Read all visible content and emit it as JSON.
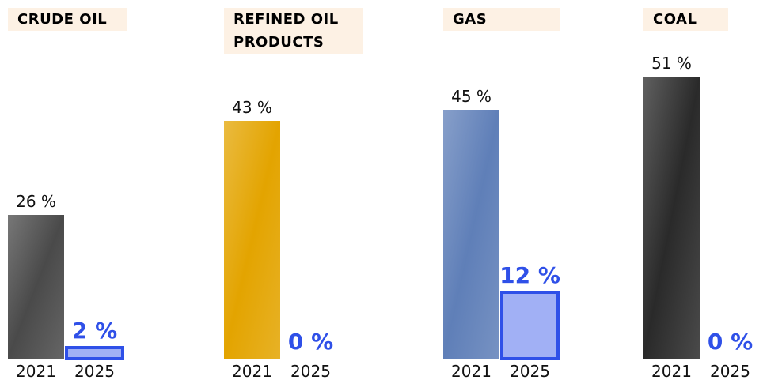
{
  "chart_data": [
    {
      "type": "bar",
      "title": "CRUDE OIL",
      "categories": [
        "2021",
        "2025"
      ],
      "values": [
        26,
        2
      ],
      "value_labels": [
        "26 %",
        "2 %"
      ],
      "colors": [
        "#4a4a4a",
        "#2f50e8"
      ]
    },
    {
      "type": "bar",
      "title": "REFINED OIL PRODUCTS",
      "categories": [
        "2021",
        "2025"
      ],
      "values": [
        43,
        0
      ],
      "value_labels": [
        "43 %",
        "0 %"
      ],
      "colors": [
        "#e3a400",
        "#2f50e8"
      ]
    },
    {
      "type": "bar",
      "title": "GAS",
      "categories": [
        "2021",
        "2025"
      ],
      "values": [
        45,
        12
      ],
      "value_labels": [
        "45 %",
        "12 %"
      ],
      "colors": [
        "#5f7fb8",
        "#2f50e8"
      ]
    },
    {
      "type": "bar",
      "title": "COAL",
      "categories": [
        "2021",
        "2025"
      ],
      "values": [
        51,
        0
      ],
      "value_labels": [
        "51 %",
        "0 %"
      ],
      "colors": [
        "#2a2a2a",
        "#2f50e8"
      ]
    }
  ]
}
